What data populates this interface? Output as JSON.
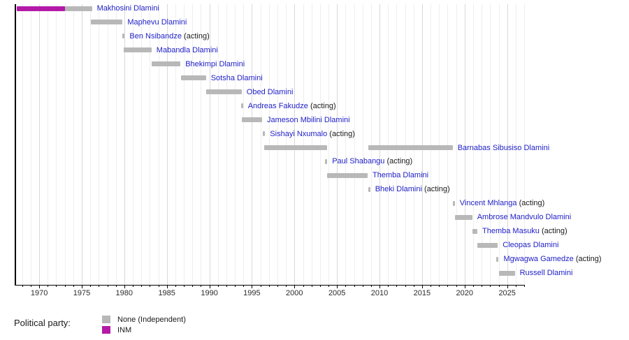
{
  "colors": {
    "background": "#ffffff",
    "name_link": "#2121c8",
    "suffix_text": "#1a1a1a",
    "axis": "#000000",
    "tick_label": "#2b2b2b",
    "grid_minor": "#eeeeee",
    "grid_major": "#d8d8d8"
  },
  "chart_data": {
    "type": "timeline",
    "title": "",
    "xlabel": "",
    "ylabel": "",
    "x_axis": {
      "min": 1967.2,
      "max": 2027.0,
      "major_ticks": [
        "1970",
        "1975",
        "1980",
        "1985",
        "1990",
        "1995",
        "2000",
        "2005",
        "2010",
        "2015",
        "2020",
        "2025"
      ],
      "minor_tick_interval": 1,
      "grid": true
    },
    "party_colors": {
      "None (Independent)": "#b8b8b8",
      "INM": "#b41aa8"
    },
    "people": [
      {
        "name": "Makhosini Dlamini",
        "suffix": "",
        "segments": [
          {
            "start": 1967.4,
            "end": 1973.0,
            "party": "INM"
          },
          {
            "start": 1973.0,
            "end": 1976.2,
            "party": "None (Independent)"
          }
        ]
      },
      {
        "name": "Maphevu Dlamini",
        "suffix": "",
        "segments": [
          {
            "start": 1976.1,
            "end": 1979.8,
            "party": "None (Independent)"
          }
        ]
      },
      {
        "name": "Ben Nsibandze",
        "suffix": "(acting)",
        "segments": [
          {
            "start": 1979.8,
            "end": 1980.05,
            "party": "None (Independent)"
          }
        ]
      },
      {
        "name": "Mabandla Dlamini",
        "suffix": "",
        "segments": [
          {
            "start": 1979.9,
            "end": 1983.2,
            "party": "None (Independent)"
          }
        ]
      },
      {
        "name": "Bhekimpi Dlamini",
        "suffix": "",
        "segments": [
          {
            "start": 1983.2,
            "end": 1986.6,
            "party": "None (Independent)"
          }
        ]
      },
      {
        "name": "Sotsha Dlamini",
        "suffix": "",
        "segments": [
          {
            "start": 1986.7,
            "end": 1989.6,
            "party": "None (Independent)"
          }
        ]
      },
      {
        "name": "Obed Dlamini",
        "suffix": "",
        "segments": [
          {
            "start": 1989.6,
            "end": 1993.8,
            "party": "None (Independent)"
          }
        ]
      },
      {
        "name": "Andreas Fakudze",
        "suffix": "(acting)",
        "segments": [
          {
            "start": 1993.7,
            "end": 1993.95,
            "party": "None (Independent)"
          }
        ]
      },
      {
        "name": "Jameson Mbilini Dlamini",
        "suffix": "",
        "segments": [
          {
            "start": 1993.8,
            "end": 1996.2,
            "party": "None (Independent)"
          }
        ]
      },
      {
        "name": "Sishayi Nxumalo",
        "suffix": "(acting)",
        "segments": [
          {
            "start": 1996.3,
            "end": 1996.55,
            "party": "None (Independent)"
          }
        ]
      },
      {
        "name": "Barnabas Sibusiso Dlamini",
        "suffix": "",
        "segments": [
          {
            "start": 1996.4,
            "end": 2003.8,
            "party": "None (Independent)"
          },
          {
            "start": 2008.7,
            "end": 2018.6,
            "party": "None (Independent)"
          }
        ]
      },
      {
        "name": "Paul Shabangu",
        "suffix": "(acting)",
        "segments": [
          {
            "start": 2003.6,
            "end": 2003.85,
            "party": "None (Independent)"
          }
        ]
      },
      {
        "name": "Themba Dlamini",
        "suffix": "",
        "segments": [
          {
            "start": 2003.8,
            "end": 2008.6,
            "party": "None (Independent)"
          }
        ]
      },
      {
        "name": "Bheki Dlamini",
        "suffix": "(acting)",
        "segments": [
          {
            "start": 2008.65,
            "end": 2008.9,
            "party": "None (Independent)"
          }
        ]
      },
      {
        "name": "Vincent Mhlanga",
        "suffix": "(acting)",
        "segments": [
          {
            "start": 2018.6,
            "end": 2018.85,
            "party": "None (Independent)"
          }
        ]
      },
      {
        "name": "Ambrose Mandvulo Dlamini",
        "suffix": "",
        "segments": [
          {
            "start": 2018.9,
            "end": 2020.9,
            "party": "None (Independent)"
          }
        ]
      },
      {
        "name": "Themba Masuku",
        "suffix": "(acting)",
        "segments": [
          {
            "start": 2020.9,
            "end": 2021.5,
            "party": "None (Independent)"
          }
        ]
      },
      {
        "name": "Cleopas Dlamini",
        "suffix": "",
        "segments": [
          {
            "start": 2021.5,
            "end": 2023.9,
            "party": "None (Independent)"
          }
        ]
      },
      {
        "name": "Mgwagwa Gamedze",
        "suffix": "(acting)",
        "segments": [
          {
            "start": 2023.75,
            "end": 2024.0,
            "party": "None (Independent)"
          }
        ]
      },
      {
        "name": "Russell Dlamini",
        "suffix": "",
        "segments": [
          {
            "start": 2024.0,
            "end": 2025.9,
            "party": "None (Independent)"
          }
        ]
      }
    ],
    "legend": {
      "title": "Political party:",
      "entries": [
        {
          "label": "None (Independent)",
          "color": "#b8b8b8"
        },
        {
          "label": "INM",
          "color": "#b41aa8"
        }
      ]
    }
  }
}
